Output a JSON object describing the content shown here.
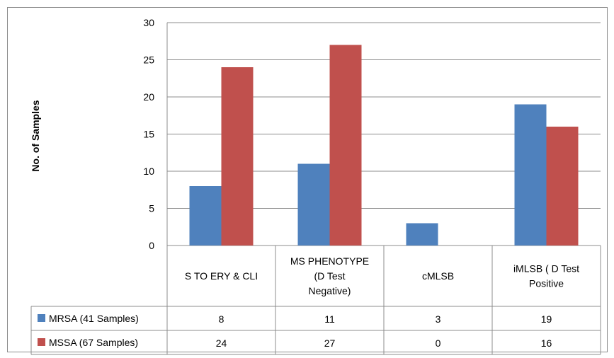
{
  "chart_data": {
    "type": "bar",
    "title": "",
    "xlabel": "",
    "ylabel": "No. of Samples",
    "ylim": [
      0,
      30
    ],
    "yticks": [
      0,
      5,
      10,
      15,
      20,
      25,
      30
    ],
    "grid": true,
    "legend": "data-table",
    "categories": [
      [
        "S TO ERY & CLI"
      ],
      [
        "MS PHENOTYPE",
        "(D Test",
        "Negative)"
      ],
      [
        "cMLSB"
      ],
      [
        "iMLSB ( D Test",
        "Positive"
      ]
    ],
    "series": [
      {
        "name": "MRSA (41 Samples)",
        "color": "#4f81bd",
        "values": [
          8,
          11,
          3,
          19
        ]
      },
      {
        "name": "MSSA (67 Samples)",
        "color": "#c0504d",
        "values": [
          24,
          27,
          0,
          16
        ]
      }
    ]
  }
}
